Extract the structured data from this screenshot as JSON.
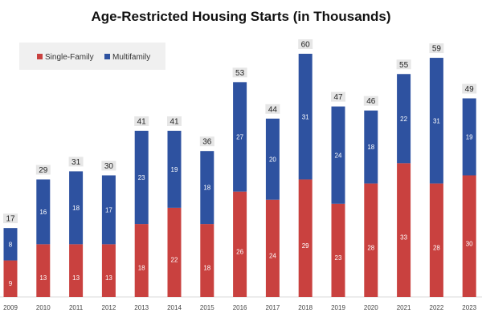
{
  "chart_data": {
    "type": "bar",
    "stacked": true,
    "title": "Age-Restricted Housing Starts (in Thousands)",
    "xlabel": "",
    "ylabel": "",
    "ylim": [
      0,
      60
    ],
    "grid": false,
    "legend_position": "top-left",
    "categories": [
      "2009",
      "2010",
      "2011",
      "2012",
      "2013",
      "2014",
      "2015",
      "2016",
      "2017",
      "2018",
      "2019",
      "2020",
      "2021",
      "2022",
      "2023"
    ],
    "series": [
      {
        "name": "Single-Family",
        "color": "#c9413f",
        "values": [
          9,
          13,
          13,
          13,
          18,
          22,
          18,
          26,
          24,
          29,
          23,
          28,
          33,
          28,
          30
        ]
      },
      {
        "name": "Multifamily",
        "color": "#2e52a0",
        "values": [
          8,
          16,
          18,
          17,
          23,
          19,
          18,
          27,
          20,
          31,
          24,
          18,
          22,
          31,
          19
        ]
      }
    ],
    "totals": [
      17,
      29,
      31,
      30,
      41,
      41,
      36,
      53,
      44,
      60,
      47,
      46,
      55,
      59,
      49
    ]
  }
}
